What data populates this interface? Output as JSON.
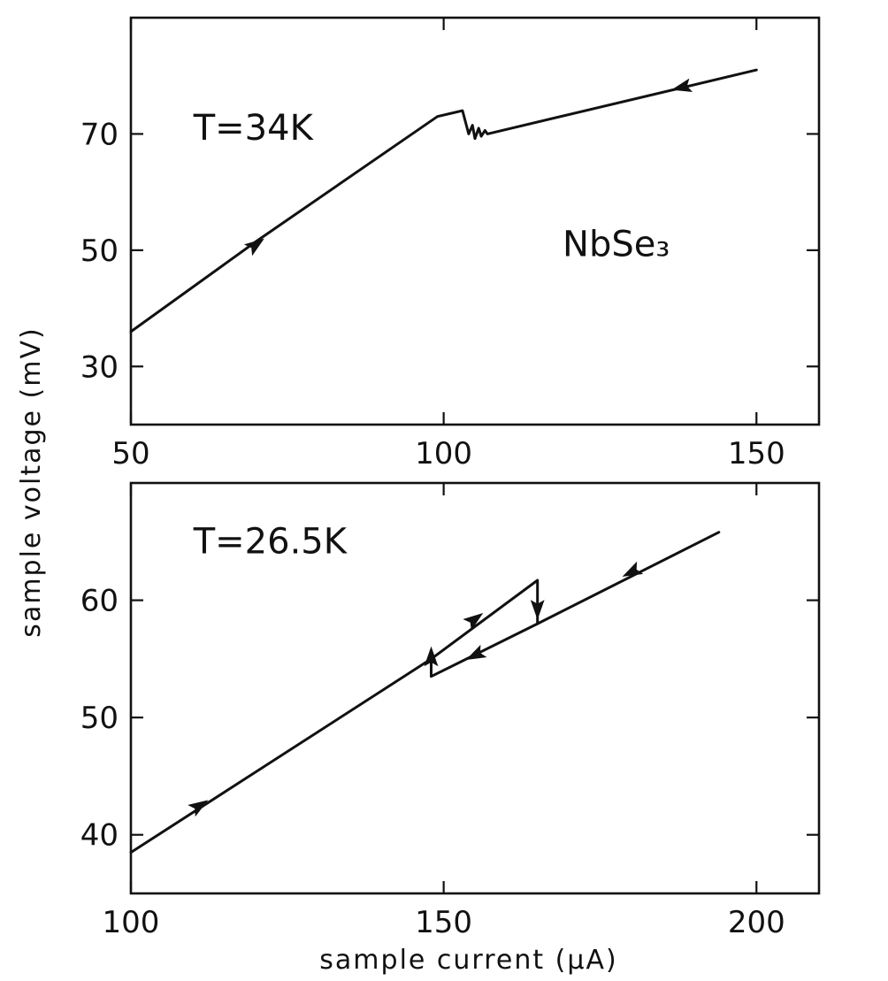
{
  "figure": {
    "xlabel": "sample current (μA)",
    "ylabel": "sample voltage (mV)"
  },
  "chart_data": [
    {
      "type": "line",
      "title": "",
      "xlim": [
        50,
        160
      ],
      "ylim": [
        20,
        90
      ],
      "x_ticks": [
        50,
        100,
        150
      ],
      "y_ticks": [
        30,
        50,
        70
      ],
      "grid": false,
      "annotations": [
        {
          "text": "T=34K",
          "x": 60,
          "y": 69
        },
        {
          "text": "NbSe₃",
          "x": 119,
          "y": 49
        }
      ],
      "series": [
        {
          "x": [
            50,
            70,
            99,
            103,
            104,
            104.6,
            105,
            105.6,
            106,
            106.6,
            107,
            150
          ],
          "y": [
            36,
            51.5,
            73,
            74,
            70,
            71.5,
            69.2,
            71,
            69.6,
            70.6,
            70,
            81
          ]
        }
      ],
      "arrows": [
        {
          "x": 70,
          "y": 51,
          "direction": "forward"
        },
        {
          "x": 138,
          "y": 78,
          "direction": "backward"
        }
      ]
    },
    {
      "type": "line",
      "title": "",
      "xlim": [
        100,
        210
      ],
      "ylim": [
        35,
        70
      ],
      "x_ticks": [
        100,
        150,
        200
      ],
      "y_ticks": [
        40,
        50,
        60
      ],
      "grid": false,
      "annotations": [
        {
          "text": "T=26.5K",
          "x": 110,
          "y": 64
        }
      ],
      "series": [
        {
          "x": [
            100,
            148,
            165,
            165,
            194
          ],
          "y": [
            38.5,
            55,
            61.7,
            58,
            65.8
          ]
        },
        {
          "x": [
            165,
            148,
            148
          ],
          "y": [
            58,
            53.5,
            55.5
          ]
        }
      ],
      "arrows": [
        {
          "x": 111,
          "y": 42.5,
          "direction": "forward"
        },
        {
          "x": 155,
          "y": 58.4,
          "direction": "forward"
        },
        {
          "x": 165,
          "y": 59.2,
          "direction": "down"
        },
        {
          "x": 155,
          "y": 55.3,
          "direction": "backward"
        },
        {
          "x": 180,
          "y": 62.4,
          "direction": "backward"
        },
        {
          "x": 148,
          "y": 55.2,
          "direction": "up"
        }
      ]
    }
  ]
}
